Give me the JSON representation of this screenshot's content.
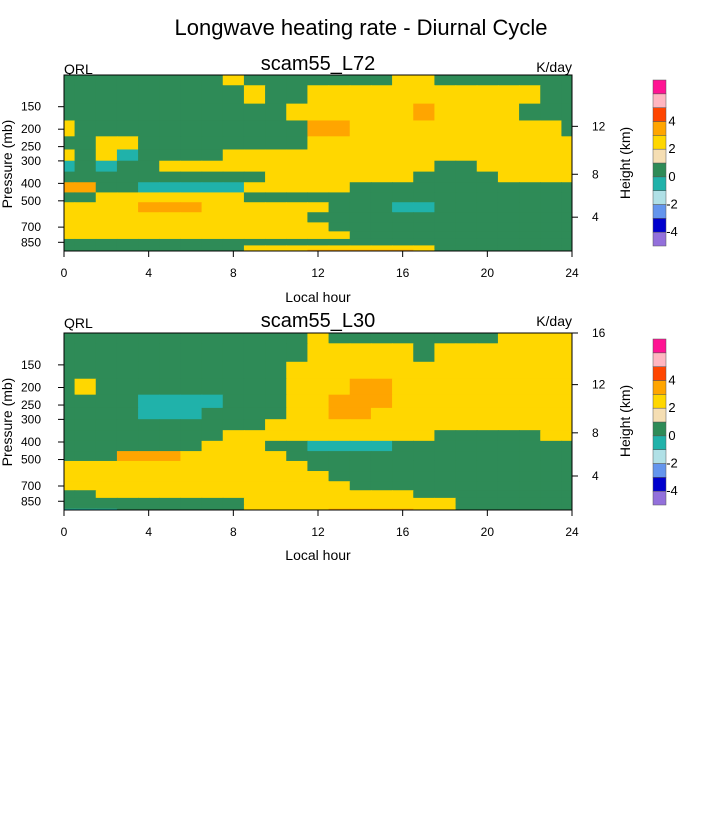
{
  "page": {
    "title": "Longwave heating rate - Diurnal Cycle"
  },
  "colors": {
    "levels": [
      -5,
      -4,
      -3,
      -2,
      -1,
      0,
      1,
      2,
      3,
      4,
      5
    ],
    "fills": [
      "#9370db",
      "#0000cd",
      "#6495ed",
      "#b0e0e6",
      "#20b2aa",
      "#2e8b57",
      "#f5deb3",
      "#ffd700",
      "#ffa500",
      "#ff4500",
      "#ffb6c1",
      "#ff1493"
    ],
    "colorbar_labels": [
      "4",
      "2",
      "0",
      "-2",
      "-4"
    ]
  },
  "chart_data": [
    {
      "type": "heatmap",
      "title": "scam55_L72",
      "left_label": "QRL",
      "right_label": "K/day",
      "xlabel": "Local hour",
      "ylabel": "Pressure (mb)",
      "y2label": "Height (km)",
      "x_ticks": [
        "0",
        "4",
        "8",
        "12",
        "16",
        "20",
        "24"
      ],
      "x_tick_values": [
        0,
        4,
        8,
        12,
        16,
        20,
        24
      ],
      "xlim": [
        0,
        24
      ],
      "y_ticks": [
        "150",
        "200",
        "250",
        "300",
        "400",
        "500",
        "700",
        "850"
      ],
      "y_tick_values": [
        150,
        200,
        250,
        300,
        400,
        500,
        700,
        850
      ],
      "ylim": [
        100,
        950
      ],
      "y_scale": "log",
      "y_inverted": true,
      "y2_ticks": [
        "4",
        "8",
        "12"
      ],
      "y2_tick_values": [
        4,
        8,
        12
      ],
      "x": [
        0,
        1,
        2,
        3,
        4,
        5,
        6,
        7,
        8,
        9,
        10,
        11,
        12,
        13,
        14,
        15,
        16,
        17,
        18,
        19,
        20,
        21,
        22,
        23,
        24
      ],
      "y": [
        100,
        130,
        160,
        200,
        240,
        280,
        320,
        370,
        420,
        480,
        540,
        620,
        700,
        780,
        850,
        920,
        950
      ],
      "z": [
        [
          -1,
          -1,
          -1,
          -1,
          -1,
          -1,
          -1,
          -1,
          1,
          -1,
          -1,
          -1,
          -1,
          -1,
          -1,
          -1,
          1,
          1,
          -1,
          -1,
          -1,
          -1,
          -1,
          -1,
          -1
        ],
        [
          -1,
          -1,
          -1,
          -1,
          -1,
          -1,
          -1,
          -1,
          -1,
          1,
          -1,
          -1,
          1,
          1,
          1,
          1,
          1,
          1,
          1,
          1,
          1,
          1,
          1,
          -1,
          -1
        ],
        [
          -1,
          -1,
          -1,
          -1,
          -1,
          -1,
          -1,
          -1,
          -1,
          -1,
          -1,
          1,
          1,
          1,
          1,
          1,
          1,
          2,
          1,
          1,
          1,
          1,
          -1,
          -1,
          -1
        ],
        [
          1,
          -1,
          -1,
          -1,
          -1,
          -1,
          -1,
          -1,
          -1,
          -1,
          -1,
          -1,
          2,
          2,
          1,
          1,
          1,
          1,
          1,
          1,
          1,
          1,
          1,
          1,
          -1
        ],
        [
          -1,
          -1,
          1,
          1,
          -1,
          -1,
          -1,
          -1,
          -1,
          -1,
          -1,
          -1,
          1,
          1,
          1,
          1,
          1,
          1,
          1,
          1,
          1,
          1,
          1,
          1,
          1
        ],
        [
          1,
          -1,
          1,
          -2,
          -1,
          -1,
          -1,
          -1,
          1,
          1,
          1,
          1,
          1,
          1,
          1,
          1,
          1,
          1,
          1,
          1,
          1,
          1,
          1,
          1,
          1
        ],
        [
          -2,
          -1,
          -2,
          -1,
          -1,
          1,
          1,
          1,
          1,
          1,
          1,
          1,
          1,
          1,
          1,
          1,
          1,
          1,
          -1,
          -1,
          1,
          1,
          1,
          1,
          1
        ],
        [
          -1,
          -1,
          -1,
          -1,
          -1,
          -1,
          -1,
          -1,
          -1,
          -1,
          1,
          1,
          1,
          1,
          1,
          1,
          1,
          -1,
          -1,
          -1,
          -1,
          1,
          1,
          1,
          1
        ],
        [
          2,
          2,
          -1,
          -1,
          -2,
          -2,
          -2,
          -2,
          -2,
          1,
          1,
          1,
          1,
          1,
          -1,
          -1,
          -1,
          -1,
          -1,
          -1,
          -1,
          -1,
          -1,
          -1,
          -1
        ],
        [
          -1,
          -1,
          1,
          1,
          1,
          1,
          1,
          1,
          1,
          -1,
          -1,
          -1,
          -1,
          -1,
          -1,
          -1,
          -1,
          -1,
          -1,
          -1,
          -1,
          -1,
          -1,
          -1,
          -1
        ],
        [
          1,
          1,
          1,
          1,
          2,
          2,
          2,
          1,
          1,
          1,
          1,
          1,
          1,
          -1,
          -1,
          -1,
          -2,
          -2,
          -1,
          -1,
          -1,
          -1,
          -1,
          -1,
          -1
        ],
        [
          1,
          1,
          1,
          1,
          1,
          1,
          1,
          1,
          1,
          1,
          1,
          1,
          -1,
          -1,
          -1,
          -1,
          -1,
          -1,
          -1,
          -1,
          -1,
          -1,
          -1,
          -1,
          -1
        ],
        [
          1,
          1,
          1,
          1,
          1,
          1,
          1,
          1,
          1,
          1,
          1,
          1,
          1,
          -1,
          -1,
          -1,
          -1,
          -1,
          -1,
          -1,
          -1,
          -1,
          -1,
          -1,
          -1
        ],
        [
          1,
          1,
          1,
          1,
          1,
          1,
          1,
          1,
          1,
          1,
          1,
          1,
          1,
          1,
          -1,
          -1,
          -1,
          -1,
          -1,
          -1,
          -1,
          -1,
          -1,
          -1,
          -1
        ],
        [
          -1,
          -1,
          -1,
          -1,
          -1,
          -1,
          -1,
          -1,
          -1,
          -1,
          -1,
          -1,
          -1,
          -1,
          -1,
          -1,
          -1,
          -1,
          -1,
          -1,
          -1,
          -1,
          -1,
          -1,
          -1
        ],
        [
          -1,
          -1,
          -1,
          -1,
          -1,
          -1,
          -1,
          -1,
          -1,
          1,
          1,
          1,
          1,
          1,
          1,
          1,
          1,
          1,
          -1,
          -1,
          -1,
          -1,
          -1,
          -1,
          -1
        ],
        [
          -1,
          -1,
          -1,
          -1,
          -1,
          -1,
          -1,
          -1,
          -1,
          1,
          1,
          1,
          2,
          2,
          2,
          2,
          2,
          1,
          -1,
          -1,
          -1,
          -1,
          -1,
          -1,
          -1
        ]
      ]
    },
    {
      "type": "heatmap",
      "title": "scam55_L30",
      "left_label": "QRL",
      "right_label": "K/day",
      "xlabel": "Local hour",
      "ylabel": "Pressure (mb)",
      "y2label": "Height (km)",
      "x_ticks": [
        "0",
        "4",
        "8",
        "12",
        "16",
        "20",
        "24"
      ],
      "x_tick_values": [
        0,
        4,
        8,
        12,
        16,
        20,
        24
      ],
      "xlim": [
        0,
        24
      ],
      "y_ticks": [
        "150",
        "200",
        "250",
        "300",
        "400",
        "500",
        "700",
        "850"
      ],
      "y_tick_values": [
        150,
        200,
        250,
        300,
        400,
        500,
        700,
        850
      ],
      "ylim": [
        100,
        950
      ],
      "y_scale": "log",
      "y_inverted": true,
      "y2_ticks": [
        "4",
        "8",
        "12",
        "16"
      ],
      "y2_tick_values": [
        4,
        8,
        12,
        16
      ],
      "x": [
        0,
        1,
        2,
        3,
        4,
        5,
        6,
        7,
        8,
        9,
        10,
        11,
        12,
        13,
        14,
        15,
        16,
        17,
        18,
        19,
        20,
        21,
        22,
        23,
        24
      ],
      "y": [
        100,
        130,
        160,
        200,
        240,
        280,
        320,
        370,
        420,
        480,
        540,
        620,
        700,
        780,
        850,
        920,
        950
      ],
      "z": [
        [
          -1,
          -1,
          -1,
          -1,
          -1,
          -1,
          -1,
          -1,
          -1,
          -1,
          -1,
          -1,
          1,
          -1,
          -1,
          -1,
          -1,
          -1,
          -1,
          -1,
          -1,
          1,
          1,
          1,
          1
        ],
        [
          -1,
          -1,
          -1,
          -1,
          -1,
          -1,
          -1,
          -1,
          -1,
          -1,
          -1,
          -1,
          1,
          1,
          1,
          1,
          1,
          -1,
          1,
          1,
          1,
          1,
          1,
          1,
          1
        ],
        [
          -1,
          -1,
          -1,
          -1,
          -1,
          -1,
          -1,
          -1,
          -1,
          -1,
          -1,
          1,
          1,
          1,
          1,
          1,
          1,
          1,
          1,
          1,
          1,
          1,
          1,
          1,
          1
        ],
        [
          -1,
          1,
          -1,
          -1,
          -1,
          -1,
          -1,
          -1,
          -1,
          -1,
          -1,
          1,
          1,
          1,
          2,
          2,
          1,
          1,
          1,
          1,
          1,
          1,
          1,
          1,
          1
        ],
        [
          -1,
          -1,
          -1,
          -1,
          -2,
          -2,
          -2,
          -2,
          -1,
          -1,
          -1,
          1,
          1,
          2,
          2,
          2,
          1,
          1,
          1,
          1,
          1,
          1,
          1,
          1,
          1
        ],
        [
          -1,
          -1,
          -1,
          -1,
          -2,
          -2,
          -2,
          -1,
          -1,
          -1,
          -1,
          1,
          1,
          2,
          2,
          1,
          1,
          1,
          1,
          1,
          1,
          1,
          1,
          1,
          1
        ],
        [
          -1,
          -1,
          -1,
          -1,
          -1,
          -1,
          -1,
          -1,
          -1,
          -1,
          1,
          1,
          1,
          1,
          1,
          1,
          1,
          1,
          1,
          1,
          1,
          1,
          1,
          1,
          1
        ],
        [
          -1,
          -1,
          -1,
          -1,
          -1,
          -1,
          -1,
          -1,
          1,
          1,
          1,
          1,
          1,
          1,
          1,
          1,
          1,
          1,
          -1,
          -1,
          -1,
          -1,
          -1,
          1,
          1
        ],
        [
          -1,
          -1,
          -1,
          -1,
          -1,
          -1,
          -1,
          1,
          1,
          1,
          -1,
          -1,
          -2,
          -2,
          -2,
          -2,
          -1,
          -1,
          -1,
          -1,
          -1,
          -1,
          -1,
          -1,
          -1
        ],
        [
          -1,
          -1,
          -1,
          2,
          2,
          2,
          1,
          1,
          1,
          1,
          1,
          -1,
          -1,
          -1,
          -1,
          -1,
          -1,
          -1,
          -1,
          -1,
          -1,
          -1,
          -1,
          -1,
          -1
        ],
        [
          1,
          1,
          1,
          1,
          1,
          1,
          1,
          1,
          1,
          1,
          1,
          1,
          -1,
          -1,
          -1,
          -1,
          -1,
          -1,
          -1,
          -1,
          -1,
          -1,
          -1,
          -1,
          -1
        ],
        [
          1,
          1,
          1,
          1,
          1,
          1,
          1,
          1,
          1,
          1,
          1,
          1,
          1,
          -1,
          -1,
          -1,
          -1,
          -1,
          -1,
          -1,
          -1,
          -1,
          -1,
          -1,
          -1
        ],
        [
          1,
          1,
          1,
          1,
          1,
          1,
          1,
          1,
          1,
          1,
          1,
          1,
          1,
          1,
          -1,
          -1,
          -1,
          -1,
          -1,
          -1,
          -1,
          -1,
          -1,
          -1,
          -1
        ],
        [
          -1,
          -1,
          1,
          1,
          1,
          1,
          1,
          1,
          1,
          1,
          1,
          1,
          1,
          1,
          1,
          1,
          1,
          -1,
          -1,
          -1,
          -1,
          -1,
          -1,
          -1,
          -1
        ],
        [
          -1,
          -1,
          -1,
          -1,
          -1,
          -1,
          -1,
          -1,
          -1,
          1,
          1,
          1,
          1,
          1,
          1,
          1,
          1,
          1,
          1,
          -1,
          -1,
          -1,
          -1,
          -1,
          -1
        ],
        [
          -1,
          -1,
          -1,
          -1,
          -1,
          -1,
          -1,
          -1,
          -1,
          1,
          1,
          1,
          1,
          1,
          1,
          1,
          1,
          1,
          1,
          -1,
          -1,
          -1,
          -1,
          -1,
          -1
        ],
        [
          -2,
          -2,
          -2,
          -1,
          -1,
          -1,
          -1,
          -1,
          -1,
          1,
          1,
          1,
          1,
          2,
          2,
          2,
          2,
          1,
          1,
          -1,
          -1,
          -1,
          -1,
          -1,
          -1
        ]
      ]
    }
  ]
}
